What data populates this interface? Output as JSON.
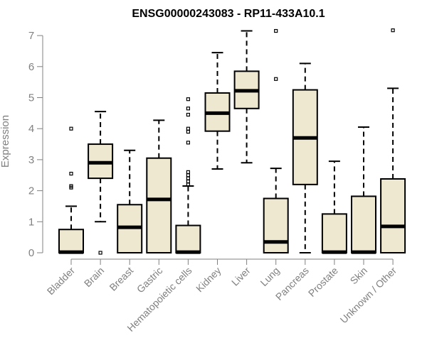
{
  "chart_data": {
    "type": "boxplot",
    "title": "ENSG00000243083 - RP11-433A10.1",
    "xlabel": "",
    "ylabel": "Expression",
    "ylim": [
      0,
      7
    ],
    "yticks": [
      0,
      1,
      2,
      3,
      4,
      5,
      6,
      7
    ],
    "grid": false,
    "legend": "none",
    "colors": {
      "box_fill": "#efe8d0",
      "box_stroke": "#000000",
      "axis": "#808080"
    },
    "categories": [
      "Bladder",
      "Brain",
      "Breast",
      "Gastric",
      "Hematopoietic cells",
      "Kidney",
      "Liver",
      "Lung",
      "Pancreas",
      "Prostate",
      "Skin",
      "Unknown / Other"
    ],
    "boxes": [
      {
        "min": 0,
        "q1": 0,
        "median": 0.02,
        "q3": 0.75,
        "max": 1.5,
        "outliers": [
          2.1,
          2.15,
          2.55,
          4.0
        ]
      },
      {
        "min": 1.0,
        "q1": 2.4,
        "median": 2.9,
        "q3": 3.5,
        "max": 4.55,
        "outliers": [
          0.0
        ]
      },
      {
        "min": 0,
        "q1": 0,
        "median": 0.82,
        "q3": 1.55,
        "max": 3.3,
        "outliers": []
      },
      {
        "min": 0,
        "q1": 0,
        "median": 1.72,
        "q3": 3.05,
        "max": 4.27,
        "outliers": []
      },
      {
        "min": 0,
        "q1": 0,
        "median": 0.02,
        "q3": 0.88,
        "max": 2.15,
        "outliers": [
          2.2,
          2.3,
          2.4,
          2.5,
          2.6,
          3.55,
          3.9,
          4.0,
          4.45,
          4.65,
          4.95
        ]
      },
      {
        "min": 2.7,
        "q1": 3.92,
        "median": 4.5,
        "q3": 5.15,
        "max": 6.45,
        "outliers": []
      },
      {
        "min": 2.9,
        "q1": 4.65,
        "median": 5.22,
        "q3": 5.85,
        "max": 7.15,
        "outliers": []
      },
      {
        "min": 0,
        "q1": 0,
        "median": 0.35,
        "q3": 1.75,
        "max": 2.72,
        "outliers": [
          5.6,
          7.15
        ]
      },
      {
        "min": 0,
        "q1": 2.2,
        "median": 3.7,
        "q3": 5.25,
        "max": 6.1,
        "outliers": []
      },
      {
        "min": 0,
        "q1": 0,
        "median": 0.02,
        "q3": 1.25,
        "max": 2.95,
        "outliers": []
      },
      {
        "min": 0,
        "q1": 0,
        "median": 0.02,
        "q3": 1.82,
        "max": 4.05,
        "outliers": []
      },
      {
        "min": 0,
        "q1": 0,
        "median": 0.85,
        "q3": 2.38,
        "max": 5.3,
        "outliers": [
          7.17
        ]
      }
    ]
  }
}
